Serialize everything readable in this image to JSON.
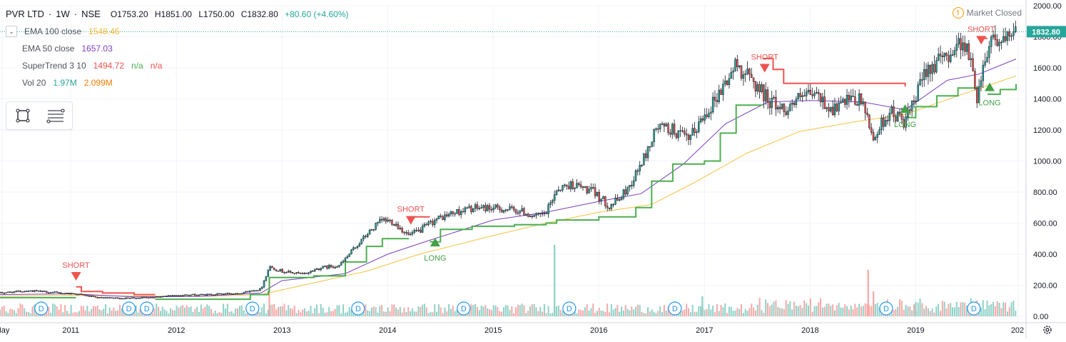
{
  "header": {
    "symbol": "PVR LTD",
    "interval": "1W",
    "exchange": "NSE",
    "open": "O1753.20",
    "high": "H1851.00",
    "low": "L1750.00",
    "close": "C1832.80",
    "change": "+80.60 (+4.60%)"
  },
  "indicators": [
    {
      "name": "EMA 100 close",
      "values": [
        "1548.46"
      ],
      "color": "#f5b731"
    },
    {
      "name": "EMA 50 close",
      "values": [
        "1657.03"
      ],
      "color": "#7b3fbf"
    },
    {
      "name": "SuperTrend 3 10",
      "values": [
        "1494.72",
        "n/a",
        "n/a"
      ],
      "color": "#ef5350"
    },
    {
      "name": "Vol 20",
      "values": [
        "1.97M",
        "2.099M"
      ],
      "colors": [
        "#26a69a",
        "#f57c00"
      ]
    }
  ],
  "market_status": "Market Closed",
  "colors": {
    "up": "#26a69a",
    "down": "#ef5350",
    "supertrend_up": "#4caf50",
    "supertrend_down": "#ef5350",
    "ema100": "#f5c242",
    "ema50": "#7b3fbf",
    "vol_up": "#8fd1c6",
    "vol_down": "#f5a9a7",
    "dividend": "#2196f3"
  },
  "chart_data": {
    "type": "candlestick",
    "symbol": "PVR LTD",
    "interval": "1W",
    "ylim": [
      0,
      2000
    ],
    "y_ticks": [
      "0.00",
      "200.00",
      "400.00",
      "600.00",
      "800.00",
      "1000.00",
      "1200.00",
      "1400.00",
      "1600.00",
      "1800.00",
      "2000.00"
    ],
    "last_price_label": "1832.80",
    "last_price": 1832.8,
    "x_ticks": [
      "May",
      "2011",
      "2012",
      "2013",
      "2014",
      "2015",
      "2016",
      "2017",
      "2018",
      "2019",
      "202"
    ],
    "x_range": [
      2010.33,
      2019.95
    ],
    "price_path": [
      [
        2010.33,
        150
      ],
      [
        2010.6,
        165
      ],
      [
        2010.9,
        150
      ],
      [
        2011.05,
        145
      ],
      [
        2011.25,
        120
      ],
      [
        2011.5,
        115
      ],
      [
        2011.8,
        125
      ],
      [
        2012.0,
        135
      ],
      [
        2012.3,
        140
      ],
      [
        2012.6,
        150
      ],
      [
        2012.8,
        175
      ],
      [
        2012.88,
        320
      ],
      [
        2013.0,
        290
      ],
      [
        2013.2,
        270
      ],
      [
        2013.35,
        310
      ],
      [
        2013.55,
        330
      ],
      [
        2013.7,
        450
      ],
      [
        2013.85,
        560
      ],
      [
        2013.95,
        620
      ],
      [
        2014.05,
        610
      ],
      [
        2014.2,
        520
      ],
      [
        2014.3,
        550
      ],
      [
        2014.45,
        620
      ],
      [
        2014.6,
        660
      ],
      [
        2014.75,
        690
      ],
      [
        2014.9,
        700
      ],
      [
        2015.1,
        690
      ],
      [
        2015.25,
        680
      ],
      [
        2015.4,
        640
      ],
      [
        2015.5,
        660
      ],
      [
        2015.6,
        820
      ],
      [
        2015.75,
        850
      ],
      [
        2015.95,
        800
      ],
      [
        2016.1,
        710
      ],
      [
        2016.2,
        760
      ],
      [
        2016.3,
        850
      ],
      [
        2016.45,
        1050
      ],
      [
        2016.55,
        1220
      ],
      [
        2016.7,
        1200
      ],
      [
        2016.85,
        1130
      ],
      [
        2017.0,
        1300
      ],
      [
        2017.15,
        1450
      ],
      [
        2017.3,
        1620
      ],
      [
        2017.45,
        1520
      ],
      [
        2017.6,
        1400
      ],
      [
        2017.75,
        1330
      ],
      [
        2017.9,
        1400
      ],
      [
        2018.05,
        1430
      ],
      [
        2018.2,
        1330
      ],
      [
        2018.35,
        1380
      ],
      [
        2018.5,
        1390
      ],
      [
        2018.55,
        1230
      ],
      [
        2018.6,
        1150
      ],
      [
        2018.75,
        1320
      ],
      [
        2018.9,
        1250
      ],
      [
        2019.0,
        1400
      ],
      [
        2019.1,
        1600
      ],
      [
        2019.25,
        1650
      ],
      [
        2019.35,
        1720
      ],
      [
        2019.45,
        1780
      ],
      [
        2019.52,
        1640
      ],
      [
        2019.58,
        1420
      ],
      [
        2019.65,
        1650
      ],
      [
        2019.72,
        1820
      ],
      [
        2019.8,
        1760
      ],
      [
        2019.9,
        1780
      ],
      [
        2019.95,
        1832.8
      ]
    ],
    "ema50_path": [
      [
        2010.33,
        140
      ],
      [
        2011.0,
        145
      ],
      [
        2011.6,
        125
      ],
      [
        2012.2,
        128
      ],
      [
        2012.8,
        150
      ],
      [
        2013.0,
        230
      ],
      [
        2013.6,
        275
      ],
      [
        2014.0,
        400
      ],
      [
        2014.4,
        490
      ],
      [
        2015.0,
        620
      ],
      [
        2015.5,
        670
      ],
      [
        2016.0,
        740
      ],
      [
        2016.4,
        790
      ],
      [
        2016.8,
        980
      ],
      [
        2017.2,
        1240
      ],
      [
        2017.6,
        1380
      ],
      [
        2018.0,
        1390
      ],
      [
        2018.5,
        1380
      ],
      [
        2018.9,
        1330
      ],
      [
        2019.3,
        1520
      ],
      [
        2019.6,
        1560
      ],
      [
        2019.95,
        1657
      ]
    ],
    "ema100_path": [
      [
        2010.33,
        130
      ],
      [
        2011.0,
        135
      ],
      [
        2011.6,
        130
      ],
      [
        2012.2,
        128
      ],
      [
        2012.8,
        140
      ],
      [
        2013.2,
        200
      ],
      [
        2013.8,
        290
      ],
      [
        2014.3,
        400
      ],
      [
        2015.0,
        520
      ],
      [
        2015.5,
        600
      ],
      [
        2016.0,
        670
      ],
      [
        2016.5,
        720
      ],
      [
        2016.9,
        860
      ],
      [
        2017.4,
        1050
      ],
      [
        2017.9,
        1190
      ],
      [
        2018.4,
        1250
      ],
      [
        2018.9,
        1300
      ],
      [
        2019.4,
        1420
      ],
      [
        2019.95,
        1548
      ]
    ],
    "supertrend_segments": [
      {
        "dir": "up",
        "points": [
          [
            2010.33,
            120
          ],
          [
            2011.05,
            120
          ]
        ]
      },
      {
        "dir": "down",
        "points": [
          [
            2011.05,
            190
          ],
          [
            2011.1,
            160
          ],
          [
            2011.3,
            150
          ],
          [
            2011.6,
            140
          ],
          [
            2011.8,
            140
          ]
        ]
      },
      {
        "dir": "up",
        "points": [
          [
            2011.8,
            110
          ],
          [
            2012.2,
            110
          ],
          [
            2012.5,
            110
          ],
          [
            2012.7,
            140
          ],
          [
            2012.87,
            160
          ],
          [
            2012.88,
            250
          ],
          [
            2013.3,
            260
          ],
          [
            2013.6,
            350
          ],
          [
            2013.8,
            450
          ],
          [
            2013.95,
            500
          ],
          [
            2014.2,
            500
          ]
        ]
      },
      {
        "dir": "down",
        "points": [
          [
            2014.2,
            640
          ],
          [
            2014.4,
            640
          ]
        ]
      },
      {
        "dir": "up",
        "points": [
          [
            2014.4,
            480
          ],
          [
            2014.5,
            560
          ],
          [
            2014.8,
            580
          ],
          [
            2015.2,
            590
          ],
          [
            2015.5,
            600
          ],
          [
            2015.6,
            620
          ],
          [
            2016.0,
            640
          ],
          [
            2016.35,
            700
          ],
          [
            2016.5,
            870
          ],
          [
            2016.7,
            980
          ],
          [
            2017.0,
            1000
          ],
          [
            2017.15,
            1180
          ],
          [
            2017.3,
            1360
          ],
          [
            2017.55,
            1360
          ]
        ]
      },
      {
        "dir": "down",
        "points": [
          [
            2017.55,
            1660
          ],
          [
            2017.65,
            1590
          ],
          [
            2017.75,
            1500
          ],
          [
            2018.2,
            1500
          ],
          [
            2018.55,
            1500
          ],
          [
            2018.9,
            1480
          ]
        ]
      },
      {
        "dir": "up",
        "points": [
          [
            2018.9,
            1280
          ],
          [
            2019.0,
            1350
          ],
          [
            2019.2,
            1420
          ],
          [
            2019.4,
            1470
          ],
          [
            2019.6,
            1470
          ]
        ]
      },
      {
        "dir": "down",
        "points": [
          [
            2019.6,
            1790
          ],
          [
            2019.68,
            1790
          ]
        ]
      },
      {
        "dir": "up",
        "points": [
          [
            2019.68,
            1430
          ],
          [
            2019.8,
            1460
          ],
          [
            2019.95,
            1495
          ]
        ]
      }
    ],
    "signals": [
      {
        "type": "SHORT",
        "t": 2011.05,
        "price": 230
      },
      {
        "type": "SHORT",
        "t": 2014.22,
        "price": 590
      },
      {
        "type": "LONG",
        "t": 2014.45,
        "price": 450
      },
      {
        "type": "SHORT",
        "t": 2017.57,
        "price": 1570
      },
      {
        "type": "LONG",
        "t": 2018.9,
        "price": 1310
      },
      {
        "type": "SHORT",
        "t": 2019.62,
        "price": 1750
      },
      {
        "type": "LONG",
        "t": 2019.7,
        "price": 1450
      }
    ],
    "dividends": [
      {
        "label": "D",
        "t": 2010.72
      },
      {
        "label": "D",
        "t": 2011.55
      },
      {
        "label": "D",
        "t": 2011.72
      },
      {
        "label": "D",
        "t": 2012.72
      },
      {
        "label": "D",
        "t": 2013.72
      },
      {
        "label": "D",
        "t": 2014.72
      },
      {
        "label": "D",
        "t": 2015.72
      },
      {
        "label": "D",
        "t": 2016.72
      },
      {
        "label": "D",
        "t": 2018.72
      },
      {
        "label": "D",
        "t": 2019.55
      }
    ],
    "volume": {
      "spikes": [
        {
          "t": 2012.88,
          "value": 0.55,
          "dir": "down"
        },
        {
          "t": 2015.58,
          "value": 1.0,
          "dir": "up"
        },
        {
          "t": 2016.98,
          "value": 0.28,
          "dir": "up"
        },
        {
          "t": 2018.55,
          "value": 0.65,
          "dir": "down"
        },
        {
          "t": 2018.6,
          "value": 0.35,
          "dir": "down"
        },
        {
          "t": 2019.0,
          "value": 0.2,
          "dir": "up"
        }
      ]
    }
  }
}
